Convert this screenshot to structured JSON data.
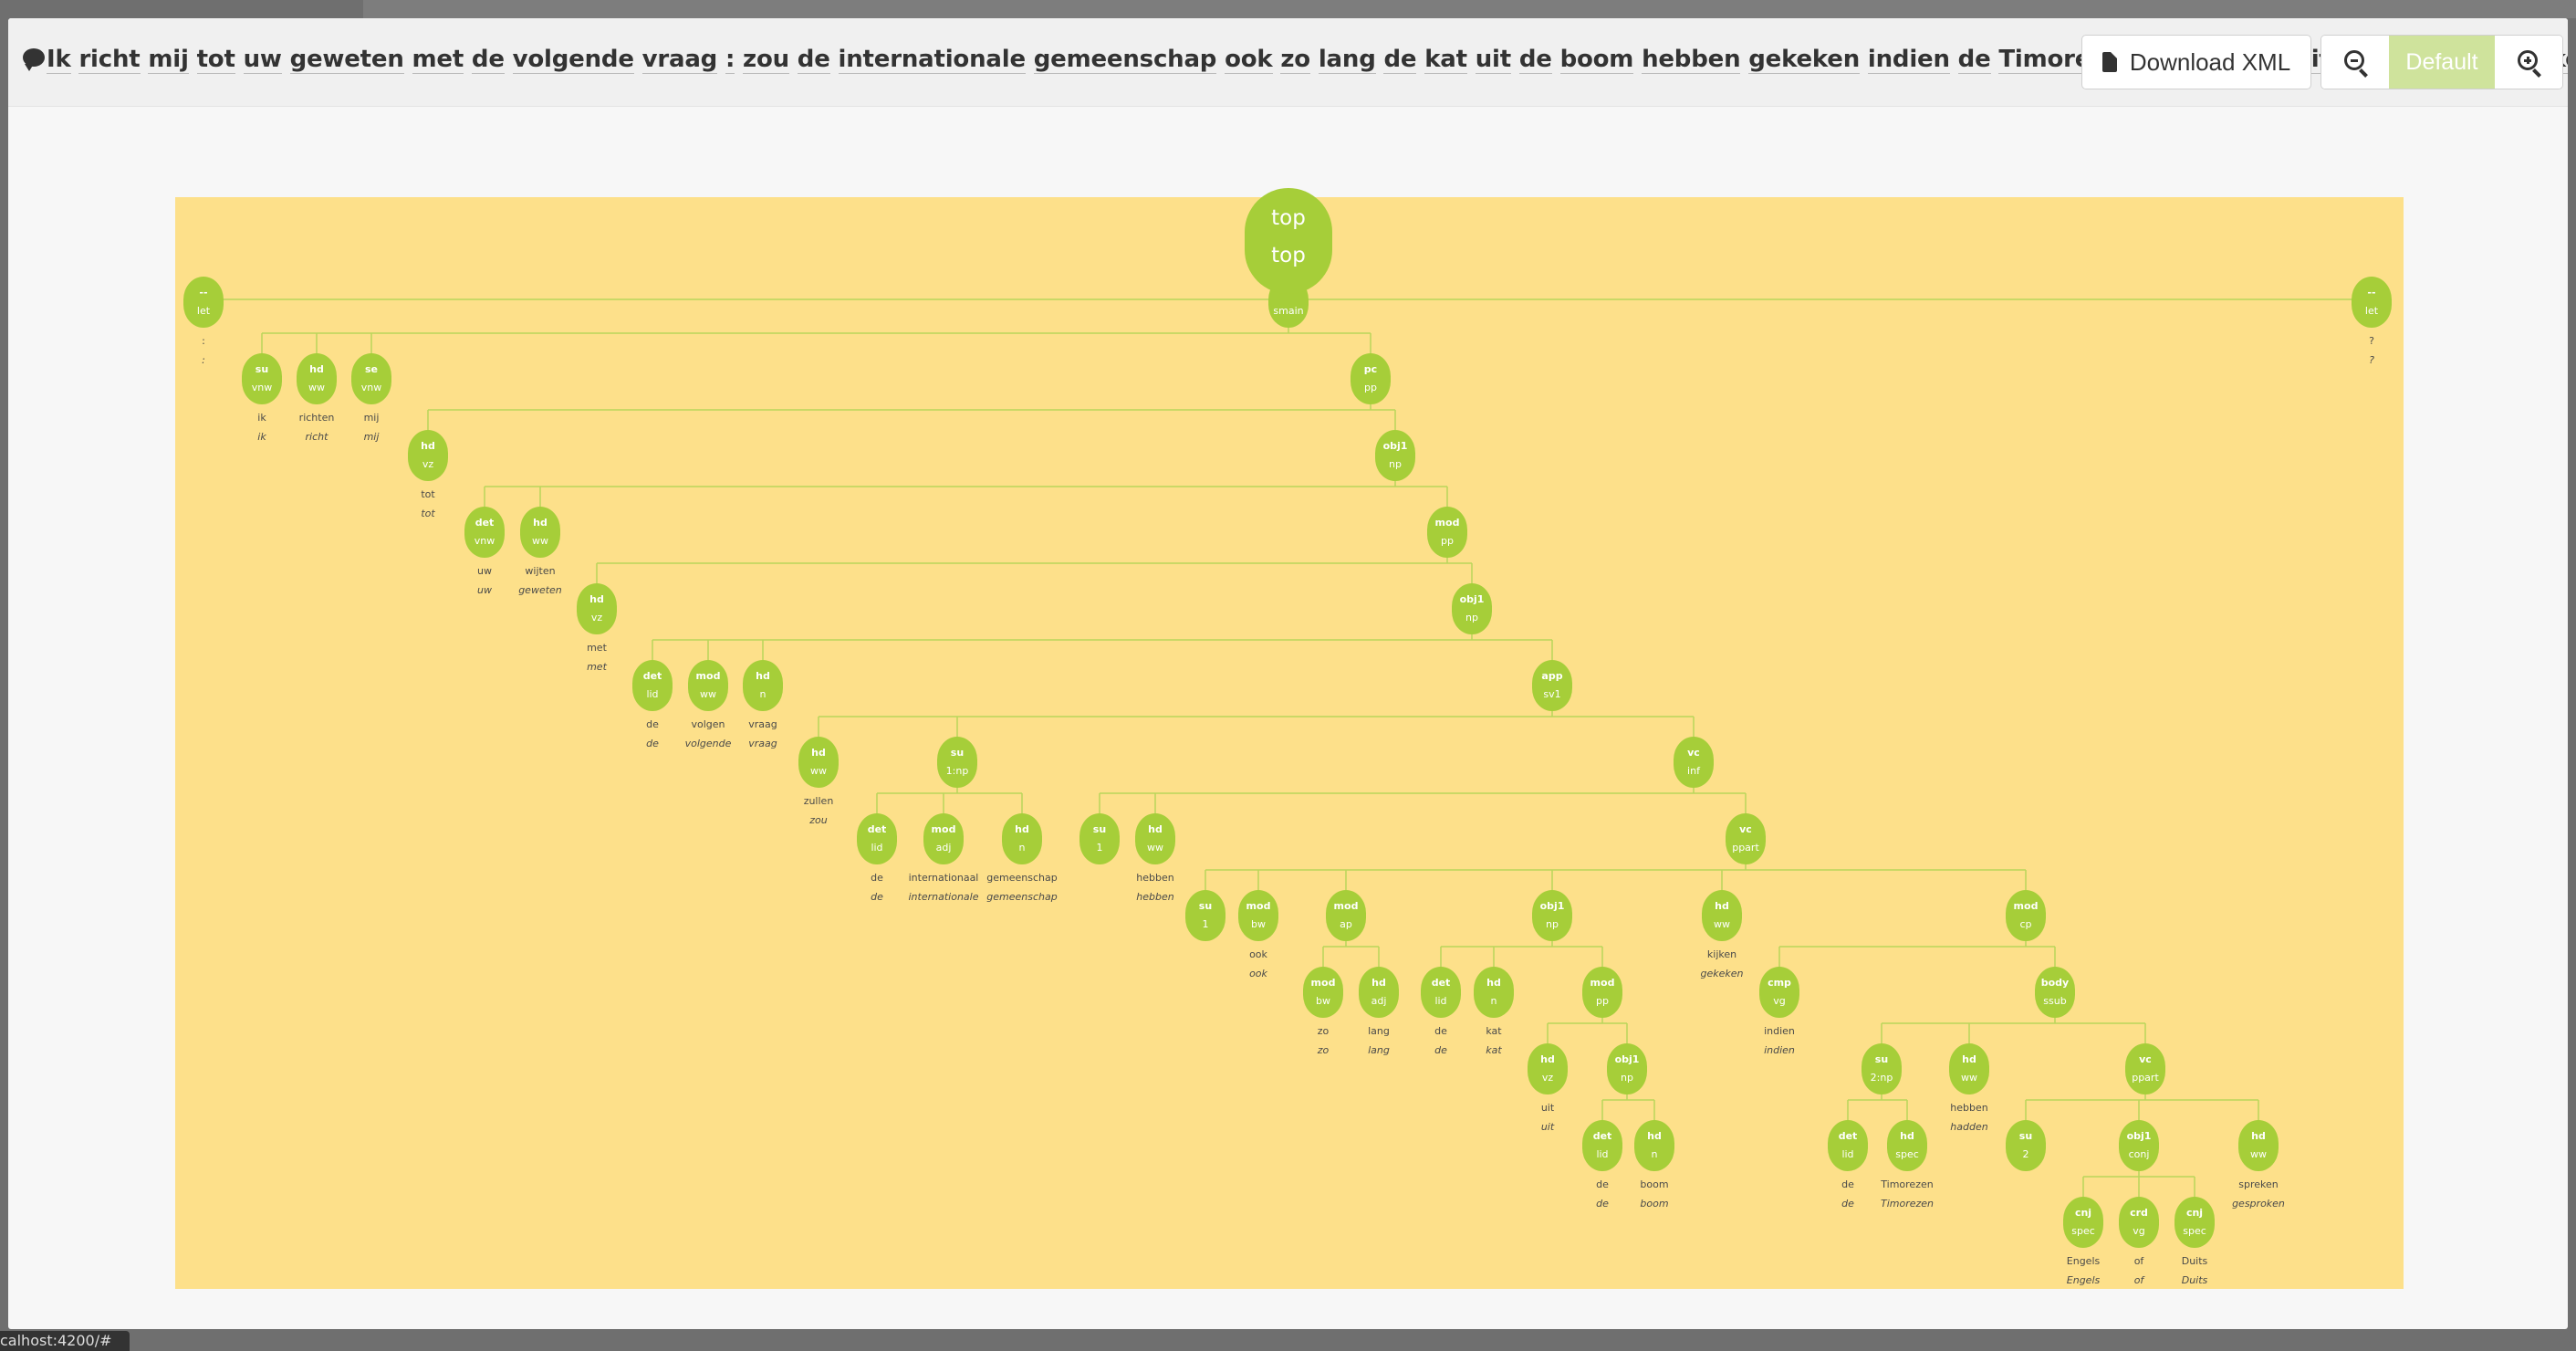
{
  "sentence": {
    "words": [
      "Ik",
      "richt",
      "mij",
      "tot",
      "uw",
      "geweten",
      "met",
      "de",
      "volgende",
      "vraag",
      ":",
      "zou",
      "de",
      "internationale",
      "gemeenschap",
      "ook",
      "zo",
      "lang",
      "de",
      "kat",
      "uit",
      "de",
      "boom",
      "hebben",
      "gekeken",
      "indien",
      "de",
      "Timorezen",
      "Engels",
      "of",
      "Duits",
      "hadden",
      "gesproken",
      "?"
    ]
  },
  "toolbar": {
    "download_label": "Download XML",
    "zoom_default_label": "Default"
  },
  "icons": {
    "sentence": "comment-icon",
    "download": "file-icon",
    "zoom_out": "zoom-out-icon",
    "zoom_in": "zoom-in-icon"
  },
  "colors": {
    "node": "#a6ce39",
    "tree_background": "#fde08a",
    "zoom_default_bg": "#cfe39c"
  },
  "status_url": "calhost:4200/#",
  "tree": {
    "id": "top",
    "rel": "top",
    "cat": "top",
    "children": [
      {
        "id": "n1",
        "rel": "--",
        "cat": "let",
        "word": ":",
        "lemma": ":"
      },
      {
        "id": "smain",
        "rel": "--",
        "cat": "smain",
        "children": [
          {
            "id": "ik",
            "rel": "su",
            "cat": "vnw",
            "word": "ik",
            "lemma": "ik"
          },
          {
            "id": "richten",
            "rel": "hd",
            "cat": "ww",
            "word": "richten",
            "lemma": "richt"
          },
          {
            "id": "mij",
            "rel": "se",
            "cat": "vnw",
            "word": "mij",
            "lemma": "mij"
          },
          {
            "id": "pp1",
            "rel": "pc",
            "cat": "pp",
            "children": [
              {
                "id": "tot",
                "rel": "hd",
                "cat": "vz",
                "word": "tot",
                "lemma": "tot"
              },
              {
                "id": "np1",
                "rel": "obj1",
                "cat": "np",
                "children": [
                  {
                    "id": "uw",
                    "rel": "det",
                    "cat": "vnw",
                    "word": "uw",
                    "lemma": "uw"
                  },
                  {
                    "id": "wijten",
                    "rel": "hd",
                    "cat": "ww",
                    "word": "wijten",
                    "lemma": "geweten"
                  },
                  {
                    "id": "pp2",
                    "rel": "mod",
                    "cat": "pp",
                    "children": [
                      {
                        "id": "met",
                        "rel": "hd",
                        "cat": "vz",
                        "word": "met",
                        "lemma": "met"
                      },
                      {
                        "id": "np2",
                        "rel": "obj1",
                        "cat": "np",
                        "children": [
                          {
                            "id": "de1",
                            "rel": "det",
                            "cat": "lid",
                            "word": "de",
                            "lemma": "de"
                          },
                          {
                            "id": "volgen",
                            "rel": "mod",
                            "cat": "ww",
                            "word": "volgen",
                            "lemma": "volgende"
                          },
                          {
                            "id": "vraag",
                            "rel": "hd",
                            "cat": "n",
                            "word": "vraag",
                            "lemma": "vraag"
                          },
                          {
                            "id": "sv1",
                            "rel": "app",
                            "cat": "sv1",
                            "children": [
                              {
                                "id": "zullen",
                                "rel": "hd",
                                "cat": "ww",
                                "word": "zullen",
                                "lemma": "zou"
                              },
                              {
                                "id": "np3",
                                "rel": "su",
                                "cat": "1:np",
                                "children": [
                                  {
                                    "id": "de2",
                                    "rel": "det",
                                    "cat": "lid",
                                    "word": "de",
                                    "lemma": "de"
                                  },
                                  {
                                    "id": "intl",
                                    "rel": "mod",
                                    "cat": "adj",
                                    "word": "internationaal",
                                    "lemma": "internationale"
                                  },
                                  {
                                    "id": "gem",
                                    "rel": "hd",
                                    "cat": "n",
                                    "word": "gemeenschap",
                                    "lemma": "gemeenschap"
                                  }
                                ]
                              },
                              {
                                "id": "inf",
                                "rel": "vc",
                                "cat": "inf",
                                "children": [
                                  {
                                    "id": "su1",
                                    "rel": "su",
                                    "cat": "1"
                                  },
                                  {
                                    "id": "hebben1",
                                    "rel": "hd",
                                    "cat": "ww",
                                    "word": "hebben",
                                    "lemma": "hebben"
                                  },
                                  {
                                    "id": "ppart1",
                                    "rel": "vc",
                                    "cat": "ppart",
                                    "children": [
                                      {
                                        "id": "su1b",
                                        "rel": "su",
                                        "cat": "1"
                                      },
                                      {
                                        "id": "ook",
                                        "rel": "mod",
                                        "cat": "bw",
                                        "word": "ook",
                                        "lemma": "ook"
                                      },
                                      {
                                        "id": "ap",
                                        "rel": "mod",
                                        "cat": "ap",
                                        "children": [
                                          {
                                            "id": "zo",
                                            "rel": "mod",
                                            "cat": "bw",
                                            "word": "zo",
                                            "lemma": "zo"
                                          },
                                          {
                                            "id": "lang",
                                            "rel": "hd",
                                            "cat": "adj",
                                            "word": "lang",
                                            "lemma": "lang"
                                          }
                                        ]
                                      },
                                      {
                                        "id": "np4",
                                        "rel": "obj1",
                                        "cat": "np",
                                        "children": [
                                          {
                                            "id": "de3",
                                            "rel": "det",
                                            "cat": "lid",
                                            "word": "de",
                                            "lemma": "de"
                                          },
                                          {
                                            "id": "kat",
                                            "rel": "hd",
                                            "cat": "n",
                                            "word": "kat",
                                            "lemma": "kat"
                                          },
                                          {
                                            "id": "pp3",
                                            "rel": "mod",
                                            "cat": "pp",
                                            "children": [
                                              {
                                                "id": "uit",
                                                "rel": "hd",
                                                "cat": "vz",
                                                "word": "uit",
                                                "lemma": "uit"
                                              },
                                              {
                                                "id": "np5",
                                                "rel": "obj1",
                                                "cat": "np",
                                                "children": [
                                                  {
                                                    "id": "de4",
                                                    "rel": "det",
                                                    "cat": "lid",
                                                    "word": "de",
                                                    "lemma": "de"
                                                  },
                                                  {
                                                    "id": "boom",
                                                    "rel": "hd",
                                                    "cat": "n",
                                                    "word": "boom",
                                                    "lemma": "boom"
                                                  }
                                                ]
                                              }
                                            ]
                                          }
                                        ]
                                      },
                                      {
                                        "id": "kijken",
                                        "rel": "hd",
                                        "cat": "ww",
                                        "word": "kijken",
                                        "lemma": "gekeken"
                                      },
                                      {
                                        "id": "cp",
                                        "rel": "mod",
                                        "cat": "cp",
                                        "children": [
                                          {
                                            "id": "indien",
                                            "rel": "cmp",
                                            "cat": "vg",
                                            "word": "indien",
                                            "lemma": "indien"
                                          },
                                          {
                                            "id": "ssub",
                                            "rel": "body",
                                            "cat": "ssub",
                                            "children": [
                                              {
                                                "id": "np6",
                                                "rel": "su",
                                                "cat": "2:np",
                                                "children": [
                                                  {
                                                    "id": "de5",
                                                    "rel": "det",
                                                    "cat": "lid",
                                                    "word": "de",
                                                    "lemma": "de"
                                                  },
                                                  {
                                                    "id": "timor",
                                                    "rel": "hd",
                                                    "cat": "spec",
                                                    "word": "Timorezen",
                                                    "lemma": "Timorezen"
                                                  }
                                                ]
                                              },
                                              {
                                                "id": "hebben2",
                                                "rel": "hd",
                                                "cat": "ww",
                                                "word": "hebben",
                                                "lemma": "hadden"
                                              },
                                              {
                                                "id": "ppart2",
                                                "rel": "vc",
                                                "cat": "ppart",
                                                "children": [
                                                  {
                                                    "id": "su2",
                                                    "rel": "su",
                                                    "cat": "2"
                                                  },
                                                  {
                                                    "id": "conj",
                                                    "rel": "obj1",
                                                    "cat": "conj",
                                                    "children": [
                                                      {
                                                        "id": "engels",
                                                        "rel": "cnj",
                                                        "cat": "spec",
                                                        "word": "Engels",
                                                        "lemma": "Engels"
                                                      },
                                                      {
                                                        "id": "of",
                                                        "rel": "crd",
                                                        "cat": "vg",
                                                        "word": "of",
                                                        "lemma": "of"
                                                      },
                                                      {
                                                        "id": "duits",
                                                        "rel": "cnj",
                                                        "cat": "spec",
                                                        "word": "Duits",
                                                        "lemma": "Duits"
                                                      }
                                                    ]
                                                  },
                                                  {
                                                    "id": "spreken",
                                                    "rel": "hd",
                                                    "cat": "ww",
                                                    "word": "spreken",
                                                    "lemma": "gesproken"
                                                  }
                                                ]
                                              }
                                            ]
                                          }
                                        ]
                                      }
                                    ]
                                  }
                                ]
                              }
                            ]
                          }
                        ]
                      }
                    ]
                  }
                ]
              }
            ]
          }
        ]
      },
      {
        "id": "n2",
        "rel": "--",
        "cat": "let",
        "word": "?",
        "lemma": "?"
      }
    ]
  }
}
